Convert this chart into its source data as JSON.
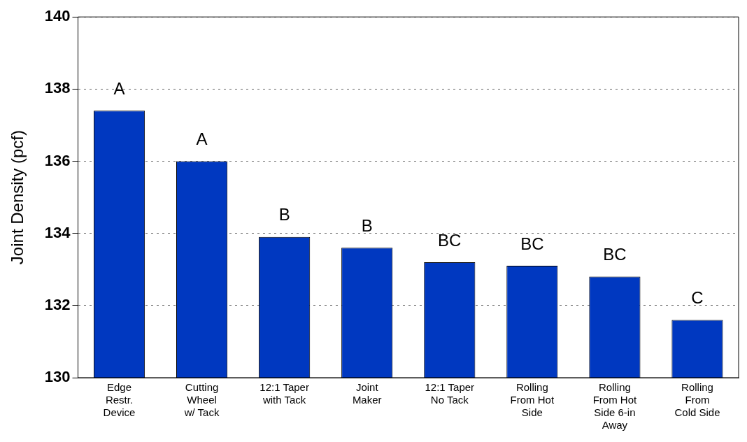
{
  "chart_data": {
    "type": "bar",
    "ylabel": "Joint Density (pcf)",
    "categories": [
      "Edge\nRestr.\nDevice",
      "Cutting\nWheel\nw/ Tack",
      "12:1 Taper\nwith Tack",
      "Joint\nMaker",
      "12:1 Taper\nNo Tack",
      "Rolling\nFrom Hot\nSide",
      "Rolling\nFrom Hot\nSide 6-in\nAway",
      "Rolling\nFrom\nCold Side"
    ],
    "values": [
      137.4,
      136.0,
      133.9,
      133.6,
      133.2,
      133.1,
      132.8,
      131.6
    ],
    "value_labels": [
      "A",
      "A",
      "B",
      "B",
      "BC",
      "BC",
      "BC",
      "C"
    ],
    "color": "#0038c0",
    "ylim": [
      130,
      140
    ],
    "yticks": [
      130,
      132,
      134,
      136,
      138,
      140
    ],
    "grid": "y",
    "legend": false
  }
}
